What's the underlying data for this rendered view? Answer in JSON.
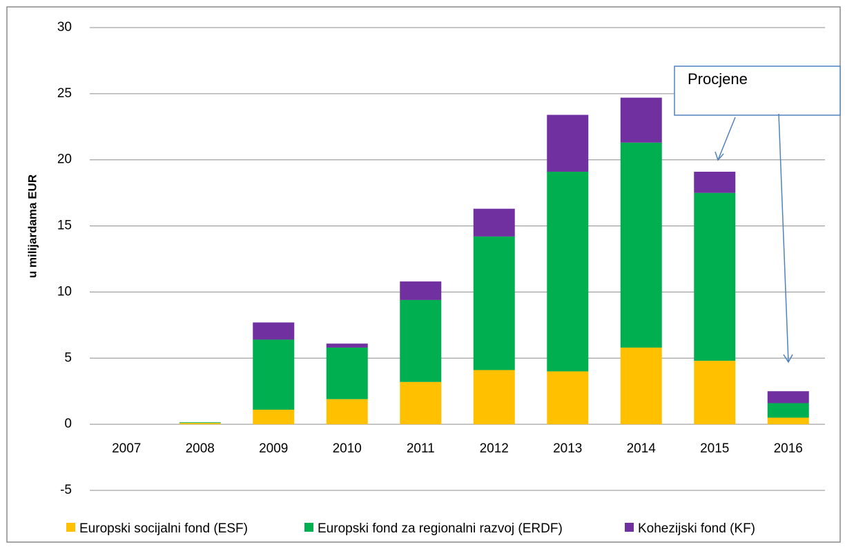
{
  "chart_data": {
    "type": "stacked_bar",
    "ylabel": "u milijardama  EUR",
    "annotation": "Procjene",
    "categories": [
      "2007",
      "2008",
      "2009",
      "2010",
      "2011",
      "2012",
      "2013",
      "2014",
      "2015",
      "2016"
    ],
    "series": [
      {
        "name": "Europski socijalni fond (ESF)",
        "color": "#ffc000",
        "values": [
          0,
          0.1,
          1.1,
          1.9,
          3.2,
          4.1,
          4.0,
          5.8,
          4.8,
          0.5
        ]
      },
      {
        "name": "Europski fond za regionalni razvoj (ERDF)",
        "color": "#00b050",
        "values": [
          0,
          0.05,
          5.3,
          3.9,
          6.2,
          10.1,
          15.1,
          15.5,
          12.7,
          1.1
        ]
      },
      {
        "name": "Kohezijski fond (KF)",
        "color": "#7030a0",
        "values": [
          0,
          0,
          1.3,
          0.3,
          1.4,
          2.1,
          4.3,
          3.4,
          1.6,
          0.9
        ]
      }
    ],
    "ylim": [
      -5,
      30
    ],
    "yticks": [
      -5,
      0,
      5,
      10,
      15,
      20,
      25,
      30
    ],
    "grid": true,
    "legend": "bottom"
  }
}
